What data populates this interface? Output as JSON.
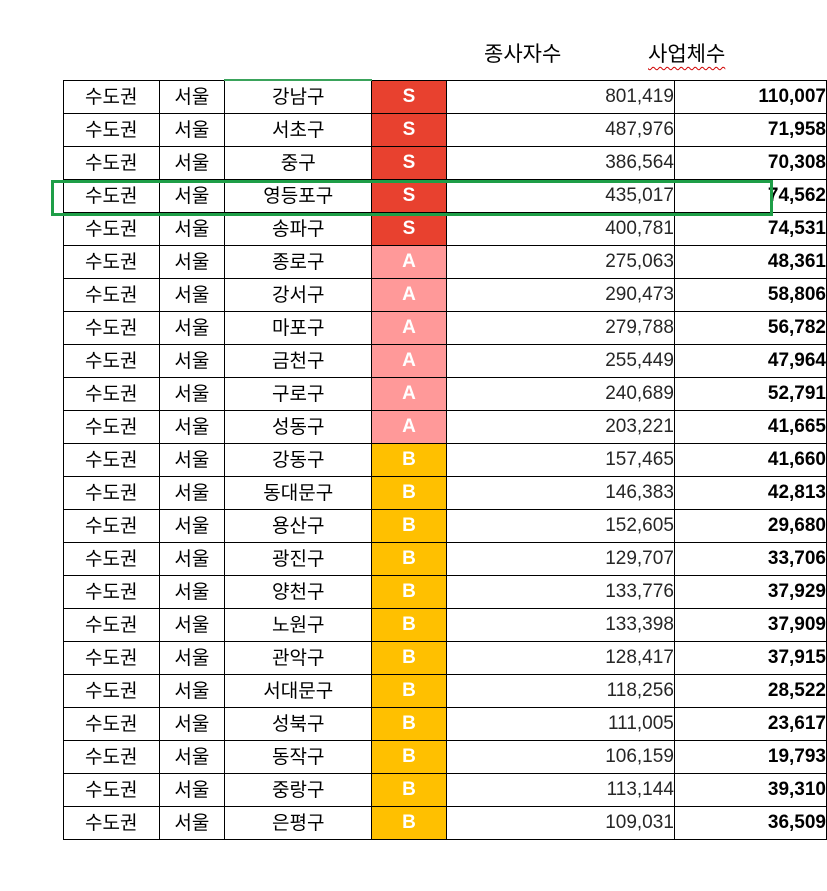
{
  "headers": {
    "employees": "종사자수",
    "businesses": "사업체수"
  },
  "grade_colors": {
    "S": "#e8412f",
    "A": "#ff9999",
    "B": "#ffc000"
  },
  "rows": [
    {
      "region": "수도권",
      "city": "서울",
      "district": "강남구",
      "grade": "S",
      "employees": "801,419",
      "businesses": "110,007"
    },
    {
      "region": "수도권",
      "city": "서울",
      "district": "서초구",
      "grade": "S",
      "employees": "487,976",
      "businesses": "71,958"
    },
    {
      "region": "수도권",
      "city": "서울",
      "district": "중구",
      "grade": "S",
      "employees": "386,564",
      "businesses": "70,308"
    },
    {
      "region": "수도권",
      "city": "서울",
      "district": "영등포구",
      "grade": "S",
      "employees": "435,017",
      "businesses": "74,562"
    },
    {
      "region": "수도권",
      "city": "서울",
      "district": "송파구",
      "grade": "S",
      "employees": "400,781",
      "businesses": "74,531"
    },
    {
      "region": "수도권",
      "city": "서울",
      "district": "종로구",
      "grade": "A",
      "employees": "275,063",
      "businesses": "48,361"
    },
    {
      "region": "수도권",
      "city": "서울",
      "district": "강서구",
      "grade": "A",
      "employees": "290,473",
      "businesses": "58,806"
    },
    {
      "region": "수도권",
      "city": "서울",
      "district": "마포구",
      "grade": "A",
      "employees": "279,788",
      "businesses": "56,782"
    },
    {
      "region": "수도권",
      "city": "서울",
      "district": "금천구",
      "grade": "A",
      "employees": "255,449",
      "businesses": "47,964"
    },
    {
      "region": "수도권",
      "city": "서울",
      "district": "구로구",
      "grade": "A",
      "employees": "240,689",
      "businesses": "52,791"
    },
    {
      "region": "수도권",
      "city": "서울",
      "district": "성동구",
      "grade": "A",
      "employees": "203,221",
      "businesses": "41,665"
    },
    {
      "region": "수도권",
      "city": "서울",
      "district": "강동구",
      "grade": "B",
      "employees": "157,465",
      "businesses": "41,660"
    },
    {
      "region": "수도권",
      "city": "서울",
      "district": "동대문구",
      "grade": "B",
      "employees": "146,383",
      "businesses": "42,813"
    },
    {
      "region": "수도권",
      "city": "서울",
      "district": "용산구",
      "grade": "B",
      "employees": "152,605",
      "businesses": "29,680"
    },
    {
      "region": "수도권",
      "city": "서울",
      "district": "광진구",
      "grade": "B",
      "employees": "129,707",
      "businesses": "33,706"
    },
    {
      "region": "수도권",
      "city": "서울",
      "district": "양천구",
      "grade": "B",
      "employees": "133,776",
      "businesses": "37,929"
    },
    {
      "region": "수도권",
      "city": "서울",
      "district": "노원구",
      "grade": "B",
      "employees": "133,398",
      "businesses": "37,909"
    },
    {
      "region": "수도권",
      "city": "서울",
      "district": "관악구",
      "grade": "B",
      "employees": "128,417",
      "businesses": "37,915"
    },
    {
      "region": "수도권",
      "city": "서울",
      "district": "서대문구",
      "grade": "B",
      "employees": "118,256",
      "businesses": "28,522"
    },
    {
      "region": "수도권",
      "city": "서울",
      "district": "성북구",
      "grade": "B",
      "employees": "111,005",
      "businesses": "23,617"
    },
    {
      "region": "수도권",
      "city": "서울",
      "district": "동작구",
      "grade": "B",
      "employees": "106,159",
      "businesses": "19,793"
    },
    {
      "region": "수도권",
      "city": "서울",
      "district": "중랑구",
      "grade": "B",
      "employees": "113,144",
      "businesses": "39,310"
    },
    {
      "region": "수도권",
      "city": "서울",
      "district": "은평구",
      "grade": "B",
      "employees": "109,031",
      "businesses": "36,509"
    }
  ],
  "highlighted_row": 3
}
